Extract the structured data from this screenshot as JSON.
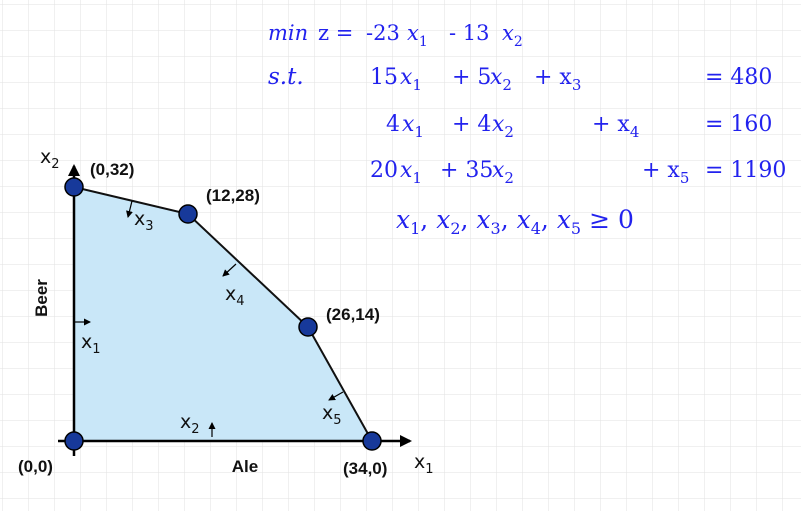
{
  "model": {
    "objective": {
      "prefix": "min",
      "lhs": "z =",
      "terms": "-23",
      "x1": "x",
      "x1_sub": "1",
      "minus": "- 13",
      "x2": "x",
      "x2_sub": "2"
    },
    "st_label": "s.t.",
    "constraints": [
      {
        "c1": "15",
        "c2": "+ 5",
        "extra": "+ x",
        "extra_sub": "3",
        "rhs": "= 480"
      },
      {
        "c1": "4",
        "c2": "+ 4",
        "extra": "+ x",
        "extra_sub": "4",
        "rhs": "= 160"
      },
      {
        "c1": "20",
        "c2": "+ 35",
        "extra": "+ x",
        "extra_sub": "5",
        "rhs": "= 1190"
      }
    ],
    "nonneg": {
      "vars": [
        "x",
        "x",
        "x",
        "x",
        "x"
      ],
      "subs": [
        "1",
        "2",
        "3",
        "4",
        "5"
      ],
      "rel": "≥ 0"
    }
  },
  "graph": {
    "x_axis_label": "Ale",
    "y_axis_label": "Beer",
    "x_var": "x",
    "x_var_sub": "1",
    "y_var": "x",
    "y_var_sub": "2",
    "vertices": [
      {
        "label": "(0,0)",
        "x": 0,
        "y": 0
      },
      {
        "label": "(0,32)",
        "x": 0,
        "y": 32
      },
      {
        "label": "(12,28)",
        "x": 12,
        "y": 28
      },
      {
        "label": "(26,14)",
        "x": 26,
        "y": 14
      },
      {
        "label": "(34,0)",
        "x": 34,
        "y": 0
      }
    ],
    "slack_labels": [
      {
        "var": "x",
        "sub": "1"
      },
      {
        "var": "x",
        "sub": "2"
      },
      {
        "var": "x",
        "sub": "3"
      },
      {
        "var": "x",
        "sub": "4"
      },
      {
        "var": "x",
        "sub": "5"
      }
    ],
    "colors": {
      "region": "#c9e7f8",
      "vertex": "#17399a",
      "math": "#2222ee",
      "grid": "#e2e2e2"
    }
  }
}
